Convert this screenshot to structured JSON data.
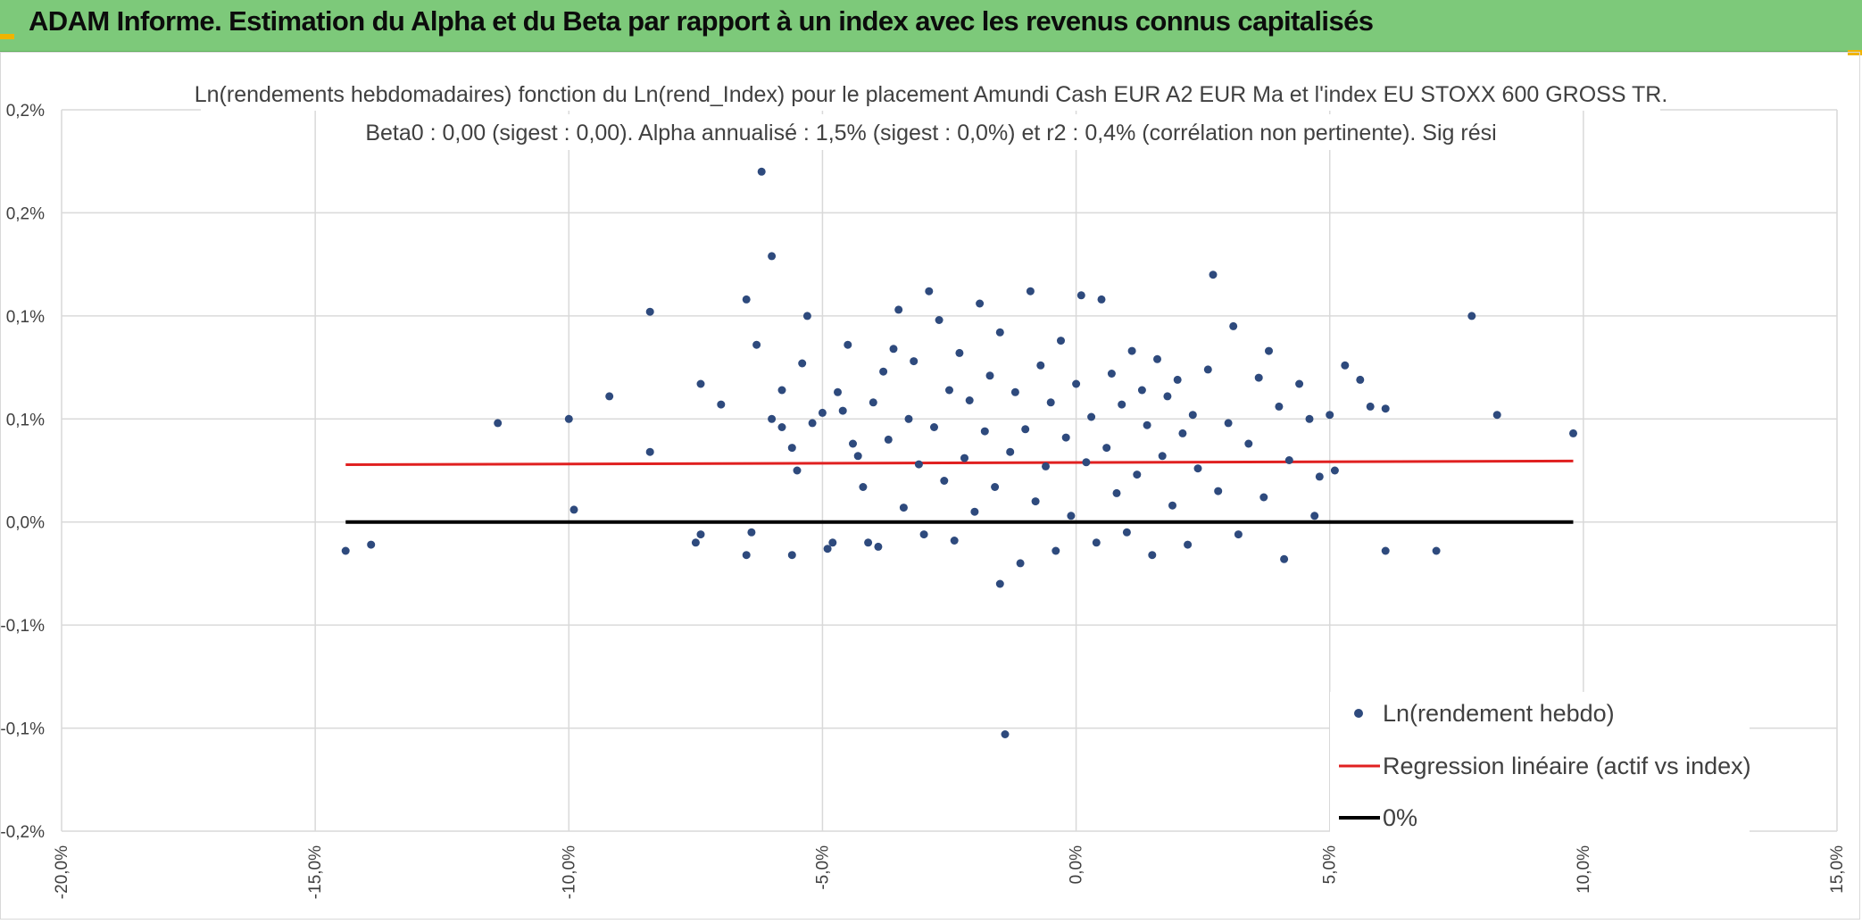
{
  "header": {
    "title": "ADAM Informe. Estimation du Alpha et du Beta par rapport à un index avec les revenus connus capitalisés"
  },
  "colors": {
    "header_bg": "#7dc97a",
    "points": "#2e4a7d",
    "regression": "#e02020",
    "zero_line": "#000000",
    "grid": "#d9d9d9"
  },
  "chart_data": {
    "type": "scatter",
    "title_lines": [
      "Ln(rendements hebdomadaires) fonction du Ln(rend_Index) pour le placement Amundi Cash EUR A2 EUR Ma et l'index EU STOXX 600 GROSS TR.",
      "Beta0 : 0,00 (sigest : 0,00). Alpha annualisé : 1,5% (sigest : 0,0%) et r2 : 0,4% (corrélation non pertinente). Sig rési"
    ],
    "xlabel": "",
    "ylabel": "",
    "x_range": [
      -20,
      15
    ],
    "y_range": [
      -0.15,
      0.2
    ],
    "x_ticks": [
      -20,
      -15,
      -10,
      -5,
      0,
      5,
      10,
      15
    ],
    "x_tick_labels": [
      "-20,0%",
      "-15,0%",
      "-10,0%",
      "-5,0%",
      "0,0%",
      "5,0%",
      "10,0%",
      "15,0%"
    ],
    "y_ticks": [
      0.2,
      0.15,
      0.1,
      0.05,
      0,
      -0.05,
      -0.1,
      -0.15
    ],
    "y_tick_labels": [
      "0,2%",
      "0,2%",
      "0,1%",
      "0,1%",
      "0,0%",
      "-0,1%",
      "-0,1%",
      "-0,2%"
    ],
    "grid": true,
    "legend_position": "bottom-right",
    "series": [
      {
        "name": "Ln(rendement hebdo)",
        "kind": "points",
        "color": "#2e4a7d",
        "points": [
          [
            -14.4,
            -0.014
          ],
          [
            -13.9,
            -0.011
          ],
          [
            -11.4,
            0.048
          ],
          [
            -10.0,
            0.05
          ],
          [
            -9.9,
            0.006
          ],
          [
            -9.2,
            0.061
          ],
          [
            -8.4,
            0.102
          ],
          [
            -8.4,
            0.034
          ],
          [
            -7.5,
            -0.01
          ],
          [
            -7.4,
            -0.006
          ],
          [
            -7.4,
            0.067
          ],
          [
            -7.0,
            0.057
          ],
          [
            -6.5,
            0.108
          ],
          [
            -6.5,
            -0.016
          ],
          [
            -6.4,
            -0.005
          ],
          [
            -6.3,
            0.086
          ],
          [
            -6.2,
            0.17
          ],
          [
            -6.0,
            0.129
          ],
          [
            -6.0,
            0.05
          ],
          [
            -5.8,
            0.046
          ],
          [
            -5.8,
            0.064
          ],
          [
            -5.6,
            0.036
          ],
          [
            -5.6,
            -0.016
          ],
          [
            -5.5,
            0.025
          ],
          [
            -5.4,
            0.077
          ],
          [
            -5.3,
            0.1
          ],
          [
            -5.2,
            0.048
          ],
          [
            -5.0,
            0.053
          ],
          [
            -4.9,
            -0.013
          ],
          [
            -4.8,
            -0.01
          ],
          [
            -4.7,
            0.063
          ],
          [
            -4.6,
            0.054
          ],
          [
            -4.5,
            0.086
          ],
          [
            -4.4,
            0.038
          ],
          [
            -4.3,
            0.032
          ],
          [
            -4.2,
            0.017
          ],
          [
            -4.1,
            -0.01
          ],
          [
            -4.0,
            0.058
          ],
          [
            -3.9,
            -0.012
          ],
          [
            -3.8,
            0.073
          ],
          [
            -3.7,
            0.04
          ],
          [
            -3.6,
            0.084
          ],
          [
            -3.5,
            0.103
          ],
          [
            -3.4,
            0.007
          ],
          [
            -3.3,
            0.05
          ],
          [
            -3.2,
            0.078
          ],
          [
            -3.1,
            0.028
          ],
          [
            -3.0,
            -0.006
          ],
          [
            -2.9,
            0.112
          ],
          [
            -2.8,
            0.046
          ],
          [
            -2.7,
            0.098
          ],
          [
            -2.6,
            0.02
          ],
          [
            -2.5,
            0.064
          ],
          [
            -2.4,
            -0.009
          ],
          [
            -2.3,
            0.082
          ],
          [
            -2.2,
            0.031
          ],
          [
            -2.1,
            0.059
          ],
          [
            -2.0,
            0.005
          ],
          [
            -1.9,
            0.106
          ],
          [
            -1.8,
            0.044
          ],
          [
            -1.7,
            0.071
          ],
          [
            -1.6,
            0.017
          ],
          [
            -1.5,
            0.092
          ],
          [
            -1.5,
            -0.03
          ],
          [
            -1.4,
            -0.103
          ],
          [
            -1.3,
            0.034
          ],
          [
            -1.2,
            0.063
          ],
          [
            -1.1,
            -0.02
          ],
          [
            -1.0,
            0.045
          ],
          [
            -0.9,
            0.112
          ],
          [
            -0.8,
            0.01
          ],
          [
            -0.7,
            0.076
          ],
          [
            -0.6,
            0.027
          ],
          [
            -0.5,
            0.058
          ],
          [
            -0.4,
            -0.014
          ],
          [
            -0.3,
            0.088
          ],
          [
            -0.2,
            0.041
          ],
          [
            -0.1,
            0.003
          ],
          [
            0.0,
            0.067
          ],
          [
            0.1,
            0.11
          ],
          [
            0.2,
            0.029
          ],
          [
            0.3,
            0.051
          ],
          [
            0.4,
            -0.01
          ],
          [
            0.5,
            0.108
          ],
          [
            0.6,
            0.036
          ],
          [
            0.7,
            0.072
          ],
          [
            0.8,
            0.014
          ],
          [
            0.9,
            0.057
          ],
          [
            1.0,
            -0.005
          ],
          [
            1.1,
            0.083
          ],
          [
            1.2,
            0.023
          ],
          [
            1.3,
            0.064
          ],
          [
            1.4,
            0.047
          ],
          [
            1.5,
            -0.016
          ],
          [
            1.6,
            0.079
          ],
          [
            1.7,
            0.032
          ],
          [
            1.8,
            0.061
          ],
          [
            1.9,
            0.008
          ],
          [
            2.0,
            0.069
          ],
          [
            2.1,
            0.043
          ],
          [
            2.2,
            -0.011
          ],
          [
            2.3,
            0.052
          ],
          [
            2.4,
            0.026
          ],
          [
            2.6,
            0.074
          ],
          [
            2.7,
            0.12
          ],
          [
            2.8,
            0.015
          ],
          [
            3.0,
            0.048
          ],
          [
            3.1,
            0.095
          ],
          [
            3.2,
            -0.006
          ],
          [
            3.4,
            0.038
          ],
          [
            3.6,
            0.07
          ],
          [
            3.7,
            0.012
          ],
          [
            3.8,
            0.083
          ],
          [
            4.0,
            0.056
          ],
          [
            4.1,
            -0.018
          ],
          [
            4.2,
            0.03
          ],
          [
            4.4,
            0.067
          ],
          [
            4.6,
            0.05
          ],
          [
            4.7,
            0.003
          ],
          [
            4.8,
            0.022
          ],
          [
            5.0,
            0.052
          ],
          [
            5.1,
            0.025
          ],
          [
            5.3,
            0.076
          ],
          [
            5.6,
            0.069
          ],
          [
            5.8,
            0.056
          ],
          [
            6.1,
            0.055
          ],
          [
            6.1,
            -0.014
          ],
          [
            7.1,
            -0.014
          ],
          [
            7.8,
            0.1
          ],
          [
            8.3,
            0.052
          ],
          [
            9.8,
            0.043
          ]
        ]
      },
      {
        "name": "Regression linéaire (actif vs index)",
        "kind": "line",
        "color": "#e02020",
        "points": [
          [
            -14.4,
            0.0278
          ],
          [
            9.8,
            0.0296
          ]
        ]
      },
      {
        "name": "0%",
        "kind": "line",
        "color": "#000000",
        "points": [
          [
            -14.4,
            0.0
          ],
          [
            9.8,
            0.0
          ]
        ]
      }
    ]
  }
}
